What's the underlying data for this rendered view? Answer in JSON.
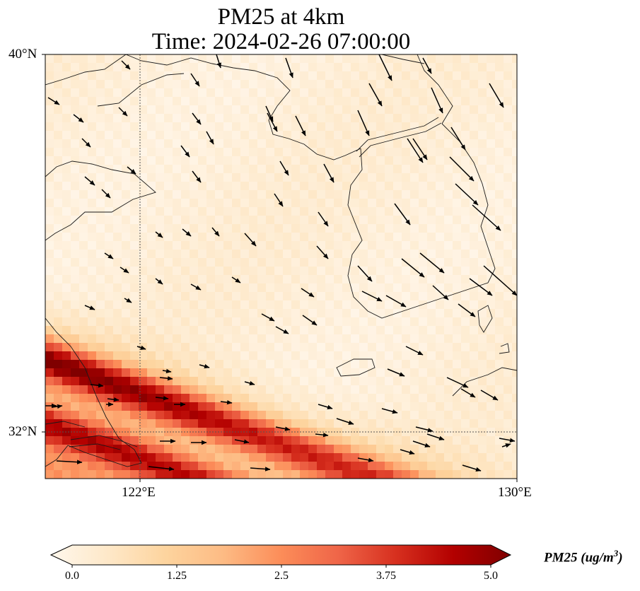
{
  "title": {
    "line1": "PM25 at 4km",
    "line2": "Time: 2024-02-26 07:00:00"
  },
  "axes": {
    "lat_labels": [
      "40°N",
      "32°N"
    ],
    "lon_labels": [
      "122°E",
      "130°E"
    ]
  },
  "colorbar": {
    "label": "PM25 (ug/m",
    "label_sup": "3",
    "label_close": ")",
    "ticks": [
      "0.0",
      "1.25",
      "2.5",
      "3.75",
      "5.0"
    ],
    "min": 0,
    "max": 5,
    "colormap": [
      "#fff7ec",
      "#fee8c8",
      "#fdd49e",
      "#fdbb84",
      "#fc8d59",
      "#ef6548",
      "#d7301f",
      "#b30000",
      "#7f0000"
    ]
  },
  "map": {
    "lon_range": [
      120,
      130
    ],
    "lat_range": [
      31,
      40
    ],
    "graticule_lon": 122,
    "graticule_lat": 32,
    "colors": {
      "coast": "#1a1a1a",
      "grid": "#555555",
      "arrow": "#000000"
    }
  }
}
